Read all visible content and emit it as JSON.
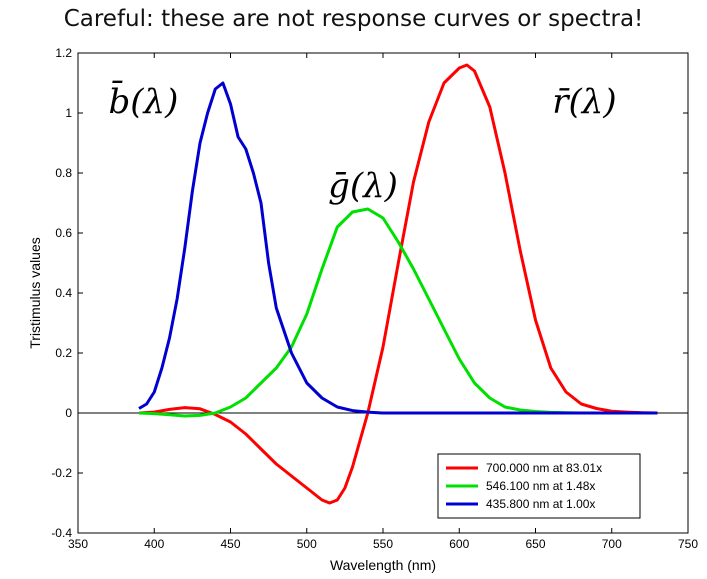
{
  "page_title": "Careful: these are not response curves or spectra!",
  "chart_data": {
    "type": "line",
    "title": "Careful: these are not response curves or spectra!",
    "xlabel": "Wavelength (nm)",
    "ylabel": "Tristimulus values",
    "xlim": [
      350,
      750
    ],
    "ylim": [
      -0.4,
      1.2
    ],
    "x_ticks": [
      350,
      400,
      450,
      500,
      550,
      600,
      650,
      700,
      750
    ],
    "y_ticks": [
      -0.4,
      -0.2,
      0,
      0.2,
      0.4,
      0.6,
      0.8,
      1,
      1.2
    ],
    "x_tick_labels": [
      "350",
      "400",
      "450",
      "500",
      "550",
      "600",
      "650",
      "700",
      "750"
    ],
    "y_tick_labels": [
      "-0.4",
      "-0.2",
      "0",
      "0.2",
      "0.4",
      "0.6",
      "0.8",
      "1",
      "1.2"
    ],
    "grid": false,
    "legend_position": "bottom-right",
    "curve_labels": {
      "b": "b̄(λ)",
      "g": "ḡ(λ)",
      "r": "r̄(λ)"
    },
    "series": [
      {
        "name": "700.000 nm at 83.01x",
        "key": "r",
        "color": "#ff0000",
        "x": [
          390,
          400,
          410,
          420,
          430,
          440,
          450,
          460,
          470,
          480,
          490,
          500,
          510,
          515,
          520,
          525,
          530,
          540,
          550,
          560,
          570,
          580,
          590,
          600,
          605,
          610,
          620,
          630,
          640,
          650,
          660,
          670,
          680,
          690,
          700,
          710,
          720,
          730
        ],
        "y": [
          0.0,
          0.003,
          0.012,
          0.018,
          0.014,
          -0.005,
          -0.03,
          -0.07,
          -0.12,
          -0.17,
          -0.21,
          -0.25,
          -0.29,
          -0.3,
          -0.29,
          -0.25,
          -0.18,
          0.0,
          0.22,
          0.5,
          0.77,
          0.97,
          1.1,
          1.15,
          1.16,
          1.14,
          1.02,
          0.8,
          0.54,
          0.31,
          0.15,
          0.07,
          0.03,
          0.015,
          0.006,
          0.003,
          0.001,
          0.0
        ]
      },
      {
        "name": "546.100 nm at  1.48x",
        "key": "g",
        "color": "#00e000",
        "x": [
          390,
          400,
          410,
          420,
          430,
          440,
          450,
          460,
          470,
          480,
          490,
          500,
          510,
          520,
          530,
          540,
          550,
          560,
          570,
          580,
          590,
          600,
          610,
          620,
          630,
          640,
          650,
          660,
          670,
          680,
          690,
          700,
          710,
          720,
          730
        ],
        "y": [
          0.0,
          -0.002,
          -0.006,
          -0.01,
          -0.008,
          0.0,
          0.02,
          0.05,
          0.1,
          0.15,
          0.22,
          0.33,
          0.48,
          0.62,
          0.67,
          0.68,
          0.65,
          0.57,
          0.48,
          0.38,
          0.28,
          0.18,
          0.1,
          0.05,
          0.02,
          0.01,
          0.005,
          0.002,
          0.001,
          0.0,
          0.0,
          0.0,
          0.0,
          0.0,
          0.0
        ]
      },
      {
        "name": "435.800 nm at  1.00x",
        "key": "b",
        "color": "#0000d0",
        "x": [
          390,
          395,
          400,
          405,
          410,
          415,
          420,
          425,
          430,
          435,
          440,
          445,
          450,
          455,
          460,
          465,
          470,
          475,
          480,
          490,
          500,
          510,
          520,
          530,
          540,
          550,
          560,
          570,
          580,
          600,
          620,
          650,
          700,
          730
        ],
        "y": [
          0.015,
          0.03,
          0.07,
          0.15,
          0.25,
          0.38,
          0.55,
          0.74,
          0.9,
          1.0,
          1.08,
          1.1,
          1.03,
          0.92,
          0.88,
          0.8,
          0.7,
          0.5,
          0.35,
          0.2,
          0.1,
          0.05,
          0.02,
          0.008,
          0.003,
          0.0,
          0.0,
          0.0,
          0.0,
          0.0,
          0.0,
          0.0,
          0.0,
          0.0
        ]
      }
    ]
  }
}
